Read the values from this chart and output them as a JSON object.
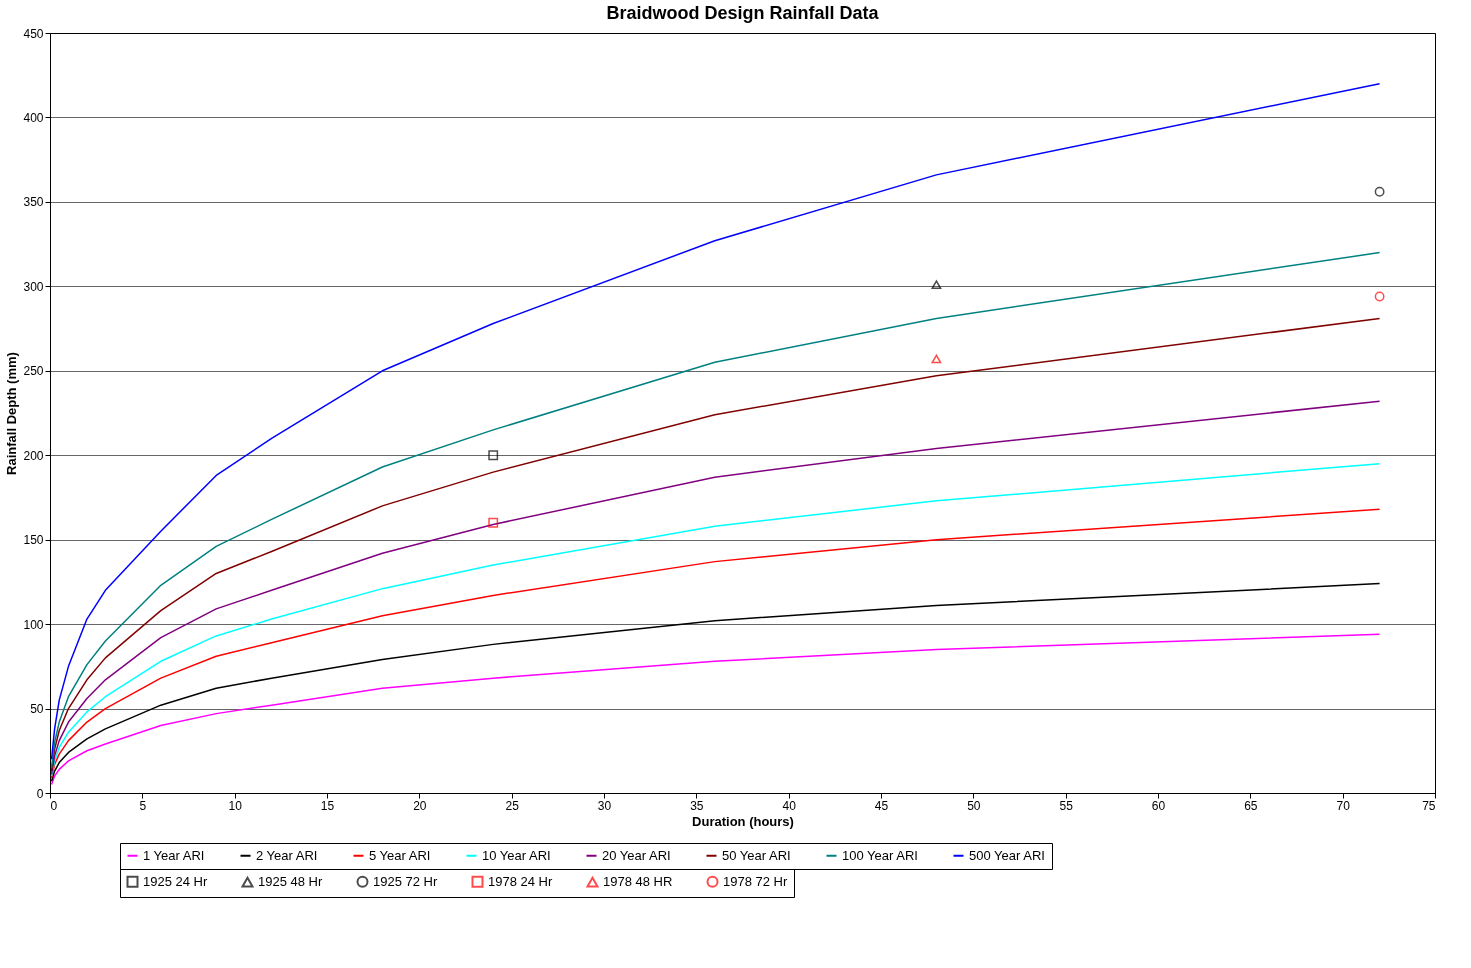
{
  "chart_data": {
    "type": "line",
    "title": "Braidwood Design Rainfall Data",
    "xlabel": "Duration (hours)",
    "ylabel": "Rainfall Depth (mm)",
    "x": [
      0.083,
      0.25,
      0.5,
      1,
      2,
      3,
      6,
      9,
      12,
      18,
      24,
      36,
      48,
      72
    ],
    "xlim": [
      0,
      75
    ],
    "xticks": [
      0,
      5,
      10,
      15,
      20,
      25,
      30,
      35,
      40,
      45,
      50,
      55,
      60,
      65,
      70,
      75
    ],
    "ylim": [
      0,
      450
    ],
    "yticks": [
      0,
      50,
      100,
      150,
      200,
      250,
      300,
      350,
      400,
      450
    ],
    "grid": "y",
    "legend": "bottom",
    "line_style": "solid",
    "series": [
      {
        "name": "1 Year ARI",
        "type": "line",
        "marker": "none",
        "color": "#ff00ff",
        "values": [
          5,
          10,
          14,
          19,
          25,
          29,
          40,
          47,
          52,
          62,
          68,
          78,
          85,
          94
        ]
      },
      {
        "name": "2 Year ARI",
        "type": "line",
        "marker": "none",
        "color": "#000000",
        "values": [
          7,
          13,
          18,
          24,
          32,
          38,
          52,
          62,
          68,
          79,
          88,
          102,
          111,
          124
        ]
      },
      {
        "name": "5 Year ARI",
        "type": "line",
        "marker": "none",
        "color": "#ff0000",
        "values": [
          9,
          17,
          23,
          31,
          42,
          50,
          68,
          81,
          89,
          105,
          117,
          137,
          150,
          168
        ]
      },
      {
        "name": "10 Year ARI",
        "type": "line",
        "marker": "none",
        "color": "#00ffff",
        "values": [
          10,
          19,
          27,
          36,
          48,
          57,
          78,
          93,
          103,
          121,
          135,
          158,
          173,
          195
        ]
      },
      {
        "name": "20 Year ARI",
        "type": "line",
        "marker": "none",
        "color": "#800080",
        "values": [
          11,
          22,
          31,
          42,
          56,
          67,
          92,
          109,
          120,
          142,
          159,
          187,
          204,
          232
        ]
      },
      {
        "name": "50 Year ARI",
        "type": "line",
        "marker": "none",
        "color": "#800000",
        "values": [
          13,
          26,
          37,
          50,
          67,
          80,
          108,
          130,
          143,
          170,
          190,
          224,
          247,
          281
        ]
      },
      {
        "name": "100 Year ARI",
        "type": "line",
        "marker": "none",
        "color": "#008080",
        "values": [
          15,
          30,
          42,
          57,
          76,
          90,
          123,
          146,
          162,
          193,
          215,
          255,
          281,
          320
        ]
      },
      {
        "name": "500 Year ARI",
        "type": "line",
        "marker": "none",
        "color": "#0000ff",
        "values": [
          20,
          38,
          55,
          75,
          103,
          120,
          155,
          188,
          210,
          250,
          278,
          327,
          366,
          420
        ]
      },
      {
        "name": "1925 24 Hr",
        "type": "scatter",
        "marker": "square",
        "color": "#000000",
        "x": [
          24
        ],
        "values": [
          200
        ]
      },
      {
        "name": "1925 48 Hr",
        "type": "scatter",
        "marker": "triangle",
        "color": "#000000",
        "x": [
          48
        ],
        "values": [
          301
        ]
      },
      {
        "name": "1925 72 Hr",
        "type": "scatter",
        "marker": "circle",
        "color": "#000000",
        "x": [
          72
        ],
        "values": [
          356
        ]
      },
      {
        "name": "1978 24 Hr",
        "type": "scatter",
        "marker": "square",
        "color": "#ff0000",
        "x": [
          24
        ],
        "values": [
          160
        ]
      },
      {
        "name": "1978 48 HR",
        "type": "scatter",
        "marker": "triangle",
        "color": "#ff0000",
        "x": [
          48
        ],
        "values": [
          257
        ]
      },
      {
        "name": "1978 72 Hr",
        "type": "scatter",
        "marker": "circle",
        "color": "#ff0000",
        "x": [
          72
        ],
        "values": [
          294
        ]
      }
    ]
  }
}
